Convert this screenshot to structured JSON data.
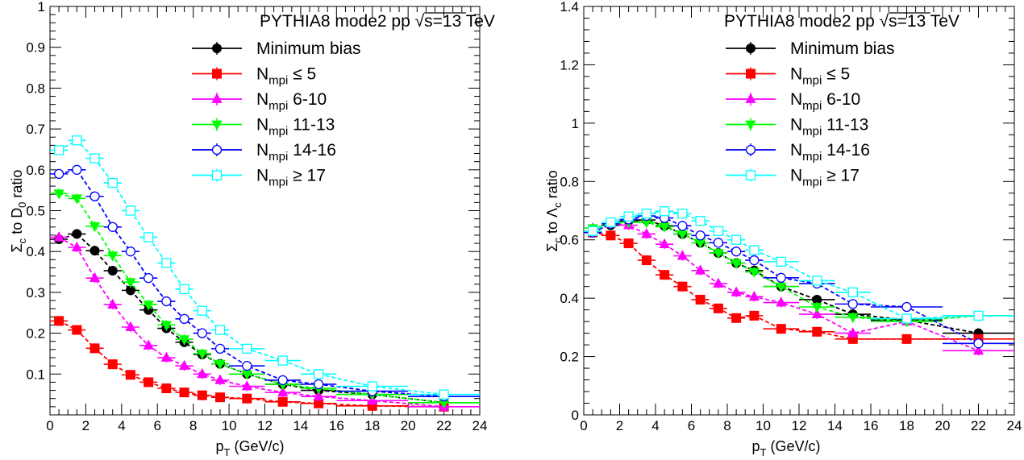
{
  "chart_data": [
    {
      "type": "scatter",
      "title_main": "PYTHIA8 mode2 pp",
      "title_energy": "s=13 TeV",
      "ylabel_main": "Σ",
      "ylabel_sub1": "c",
      "ylabel_mid": " to D",
      "ylabel_sub2": "0",
      "ylabel_tail": " ratio",
      "xlabel_main": "p",
      "xlabel_sub": "T",
      "xlabel_tail": " (GeV/c)",
      "xlim": [
        0,
        24
      ],
      "ylim": [
        0,
        1
      ],
      "xticks": [
        "0",
        "2",
        "4",
        "6",
        "8",
        "10",
        "12",
        "14",
        "16",
        "18",
        "20",
        "22",
        "24"
      ],
      "yticks": [
        "0.1",
        "0.2",
        "0.3",
        "0.4",
        "0.5",
        "0.6",
        "0.7",
        "0.8",
        "0.9",
        "1"
      ],
      "x": [
        0.5,
        1.5,
        2.5,
        3.5,
        4.5,
        5.5,
        6.5,
        7.5,
        8.5,
        9.5,
        11,
        13,
        15,
        18,
        22
      ],
      "xerr": [
        0.5,
        0.5,
        0.5,
        0.5,
        0.5,
        0.5,
        0.5,
        0.5,
        0.5,
        0.5,
        1,
        1,
        1,
        2,
        2
      ],
      "series": [
        {
          "name": "Minimum bias",
          "name_prefix": "",
          "name_sub": "",
          "name_suffix": "Minimum bias",
          "color": "#000000",
          "marker": "circle",
          "filled": true,
          "values": [
            0.43,
            0.443,
            0.402,
            0.353,
            0.305,
            0.257,
            0.212,
            0.178,
            0.148,
            0.125,
            0.1,
            0.075,
            0.06,
            0.05,
            0.03
          ]
        },
        {
          "name": "Nmpi ≤ 5",
          "name_prefix": "N",
          "name_sub": "mpi",
          "name_suffix": " ≤ 5",
          "color": "#ff0000",
          "marker": "square",
          "filled": true,
          "values": [
            0.23,
            0.208,
            0.163,
            0.124,
            0.098,
            0.08,
            0.065,
            0.055,
            0.048,
            0.043,
            0.04,
            0.032,
            0.028,
            0.022,
            0.02
          ]
        },
        {
          "name": "Nmpi 6-10",
          "name_prefix": "N",
          "name_sub": "mpi",
          "name_suffix": " 6-10",
          "color": "#ff00ff",
          "marker": "triangle-up",
          "filled": true,
          "values": [
            0.435,
            0.41,
            0.335,
            0.27,
            0.215,
            0.17,
            0.14,
            0.12,
            0.1,
            0.085,
            0.07,
            0.055,
            0.045,
            0.035,
            0.02
          ]
        },
        {
          "name": "Nmpi 11-13",
          "name_prefix": "N",
          "name_sub": "mpi",
          "name_suffix": " 11-13",
          "color": "#00ff00",
          "marker": "triangle-down",
          "filled": true,
          "values": [
            0.542,
            0.53,
            0.462,
            0.39,
            0.325,
            0.27,
            0.22,
            0.185,
            0.15,
            0.125,
            0.1,
            0.075,
            0.065,
            0.05,
            0.03
          ]
        },
        {
          "name": "Nmpi 14-16",
          "name_prefix": "N",
          "name_sub": "mpi",
          "name_suffix": " 14-16",
          "color": "#0000ff",
          "marker": "circle",
          "filled": false,
          "values": [
            0.59,
            0.6,
            0.535,
            0.46,
            0.4,
            0.335,
            0.278,
            0.235,
            0.2,
            0.162,
            0.12,
            0.085,
            0.075,
            0.058,
            0.045
          ]
        },
        {
          "name": "Nmpi ≥ 17",
          "name_prefix": "N",
          "name_sub": "mpi",
          "name_suffix": " ≥ 17",
          "color": "#00ffff",
          "marker": "square",
          "filled": false,
          "values": [
            0.648,
            0.672,
            0.628,
            0.568,
            0.5,
            0.435,
            0.372,
            0.308,
            0.255,
            0.208,
            0.162,
            0.133,
            0.1,
            0.07,
            0.05
          ]
        }
      ]
    },
    {
      "type": "scatter",
      "title_main": "PYTHIA8 mode2 pp",
      "title_energy": "s=13 TeV",
      "ylabel_main": "Σ",
      "ylabel_sub1": "c",
      "ylabel_mid": " to Λ",
      "ylabel_sub2": "c",
      "ylabel_tail": " ratio",
      "xlabel_main": "p",
      "xlabel_sub": "T",
      "xlabel_tail": " (GeV/c)",
      "xlim": [
        0,
        24
      ],
      "ylim": [
        0,
        1.4
      ],
      "xticks": [
        "0",
        "2",
        "4",
        "6",
        "8",
        "10",
        "12",
        "14",
        "16",
        "18",
        "20",
        "22",
        "24"
      ],
      "yticks": [
        "0",
        "0.2",
        "0.4",
        "0.6",
        "0.8",
        "1",
        "1.2",
        "1.4"
      ],
      "x": [
        0.5,
        1.5,
        2.5,
        3.5,
        4.5,
        5.5,
        6.5,
        7.5,
        8.5,
        9.5,
        11,
        13,
        15,
        18,
        22
      ],
      "xerr": [
        0.5,
        0.5,
        0.5,
        0.5,
        0.5,
        0.5,
        0.5,
        0.5,
        0.5,
        0.5,
        1,
        1,
        1,
        2,
        2
      ],
      "series": [
        {
          "name": "Minimum bias",
          "name_prefix": "",
          "name_sub": "",
          "name_suffix": "Minimum bias",
          "color": "#000000",
          "marker": "circle",
          "filled": true,
          "values": [
            0.63,
            0.65,
            0.665,
            0.668,
            0.648,
            0.62,
            0.59,
            0.555,
            0.52,
            0.495,
            0.44,
            0.395,
            0.345,
            0.325,
            0.28
          ]
        },
        {
          "name": "Nmpi ≤ 5",
          "name_prefix": "N",
          "name_sub": "mpi",
          "name_suffix": " ≤ 5",
          "color": "#ff0000",
          "marker": "square",
          "filled": true,
          "values": [
            0.625,
            0.615,
            0.588,
            0.53,
            0.48,
            0.44,
            0.395,
            0.365,
            0.332,
            0.34,
            0.295,
            0.285,
            0.26,
            0.26,
            0.26
          ]
        },
        {
          "name": "Nmpi 6-10",
          "name_prefix": "N",
          "name_sub": "mpi",
          "name_suffix": " 6-10",
          "color": "#ff00ff",
          "marker": "triangle-up",
          "filled": true,
          "values": [
            0.64,
            0.655,
            0.65,
            0.62,
            0.585,
            0.545,
            0.495,
            0.45,
            0.42,
            0.405,
            0.385,
            0.345,
            0.28,
            0.32,
            0.22
          ]
        },
        {
          "name": "Nmpi 11-13",
          "name_prefix": "N",
          "name_sub": "mpi",
          "name_suffix": " 11-13",
          "color": "#00ff00",
          "marker": "triangle-down",
          "filled": true,
          "values": [
            0.64,
            0.655,
            0.66,
            0.66,
            0.645,
            0.62,
            0.59,
            0.555,
            0.52,
            0.49,
            0.44,
            0.37,
            0.335,
            0.32,
            0.34
          ]
        },
        {
          "name": "Nmpi 14-16",
          "name_prefix": "N",
          "name_sub": "mpi",
          "name_suffix": " 14-16",
          "color": "#0000ff",
          "marker": "circle",
          "filled": false,
          "values": [
            0.625,
            0.655,
            0.67,
            0.682,
            0.675,
            0.648,
            0.615,
            0.59,
            0.56,
            0.53,
            0.47,
            0.45,
            0.38,
            0.37,
            0.245
          ]
        },
        {
          "name": "Nmpi ≥ 17",
          "name_prefix": "N",
          "name_sub": "mpi",
          "name_suffix": " ≥ 17",
          "color": "#00ffff",
          "marker": "square",
          "filled": false,
          "values": [
            0.63,
            0.66,
            0.68,
            0.69,
            0.698,
            0.69,
            0.665,
            0.63,
            0.6,
            0.565,
            0.525,
            0.46,
            0.42,
            0.33,
            0.34
          ]
        }
      ]
    }
  ]
}
